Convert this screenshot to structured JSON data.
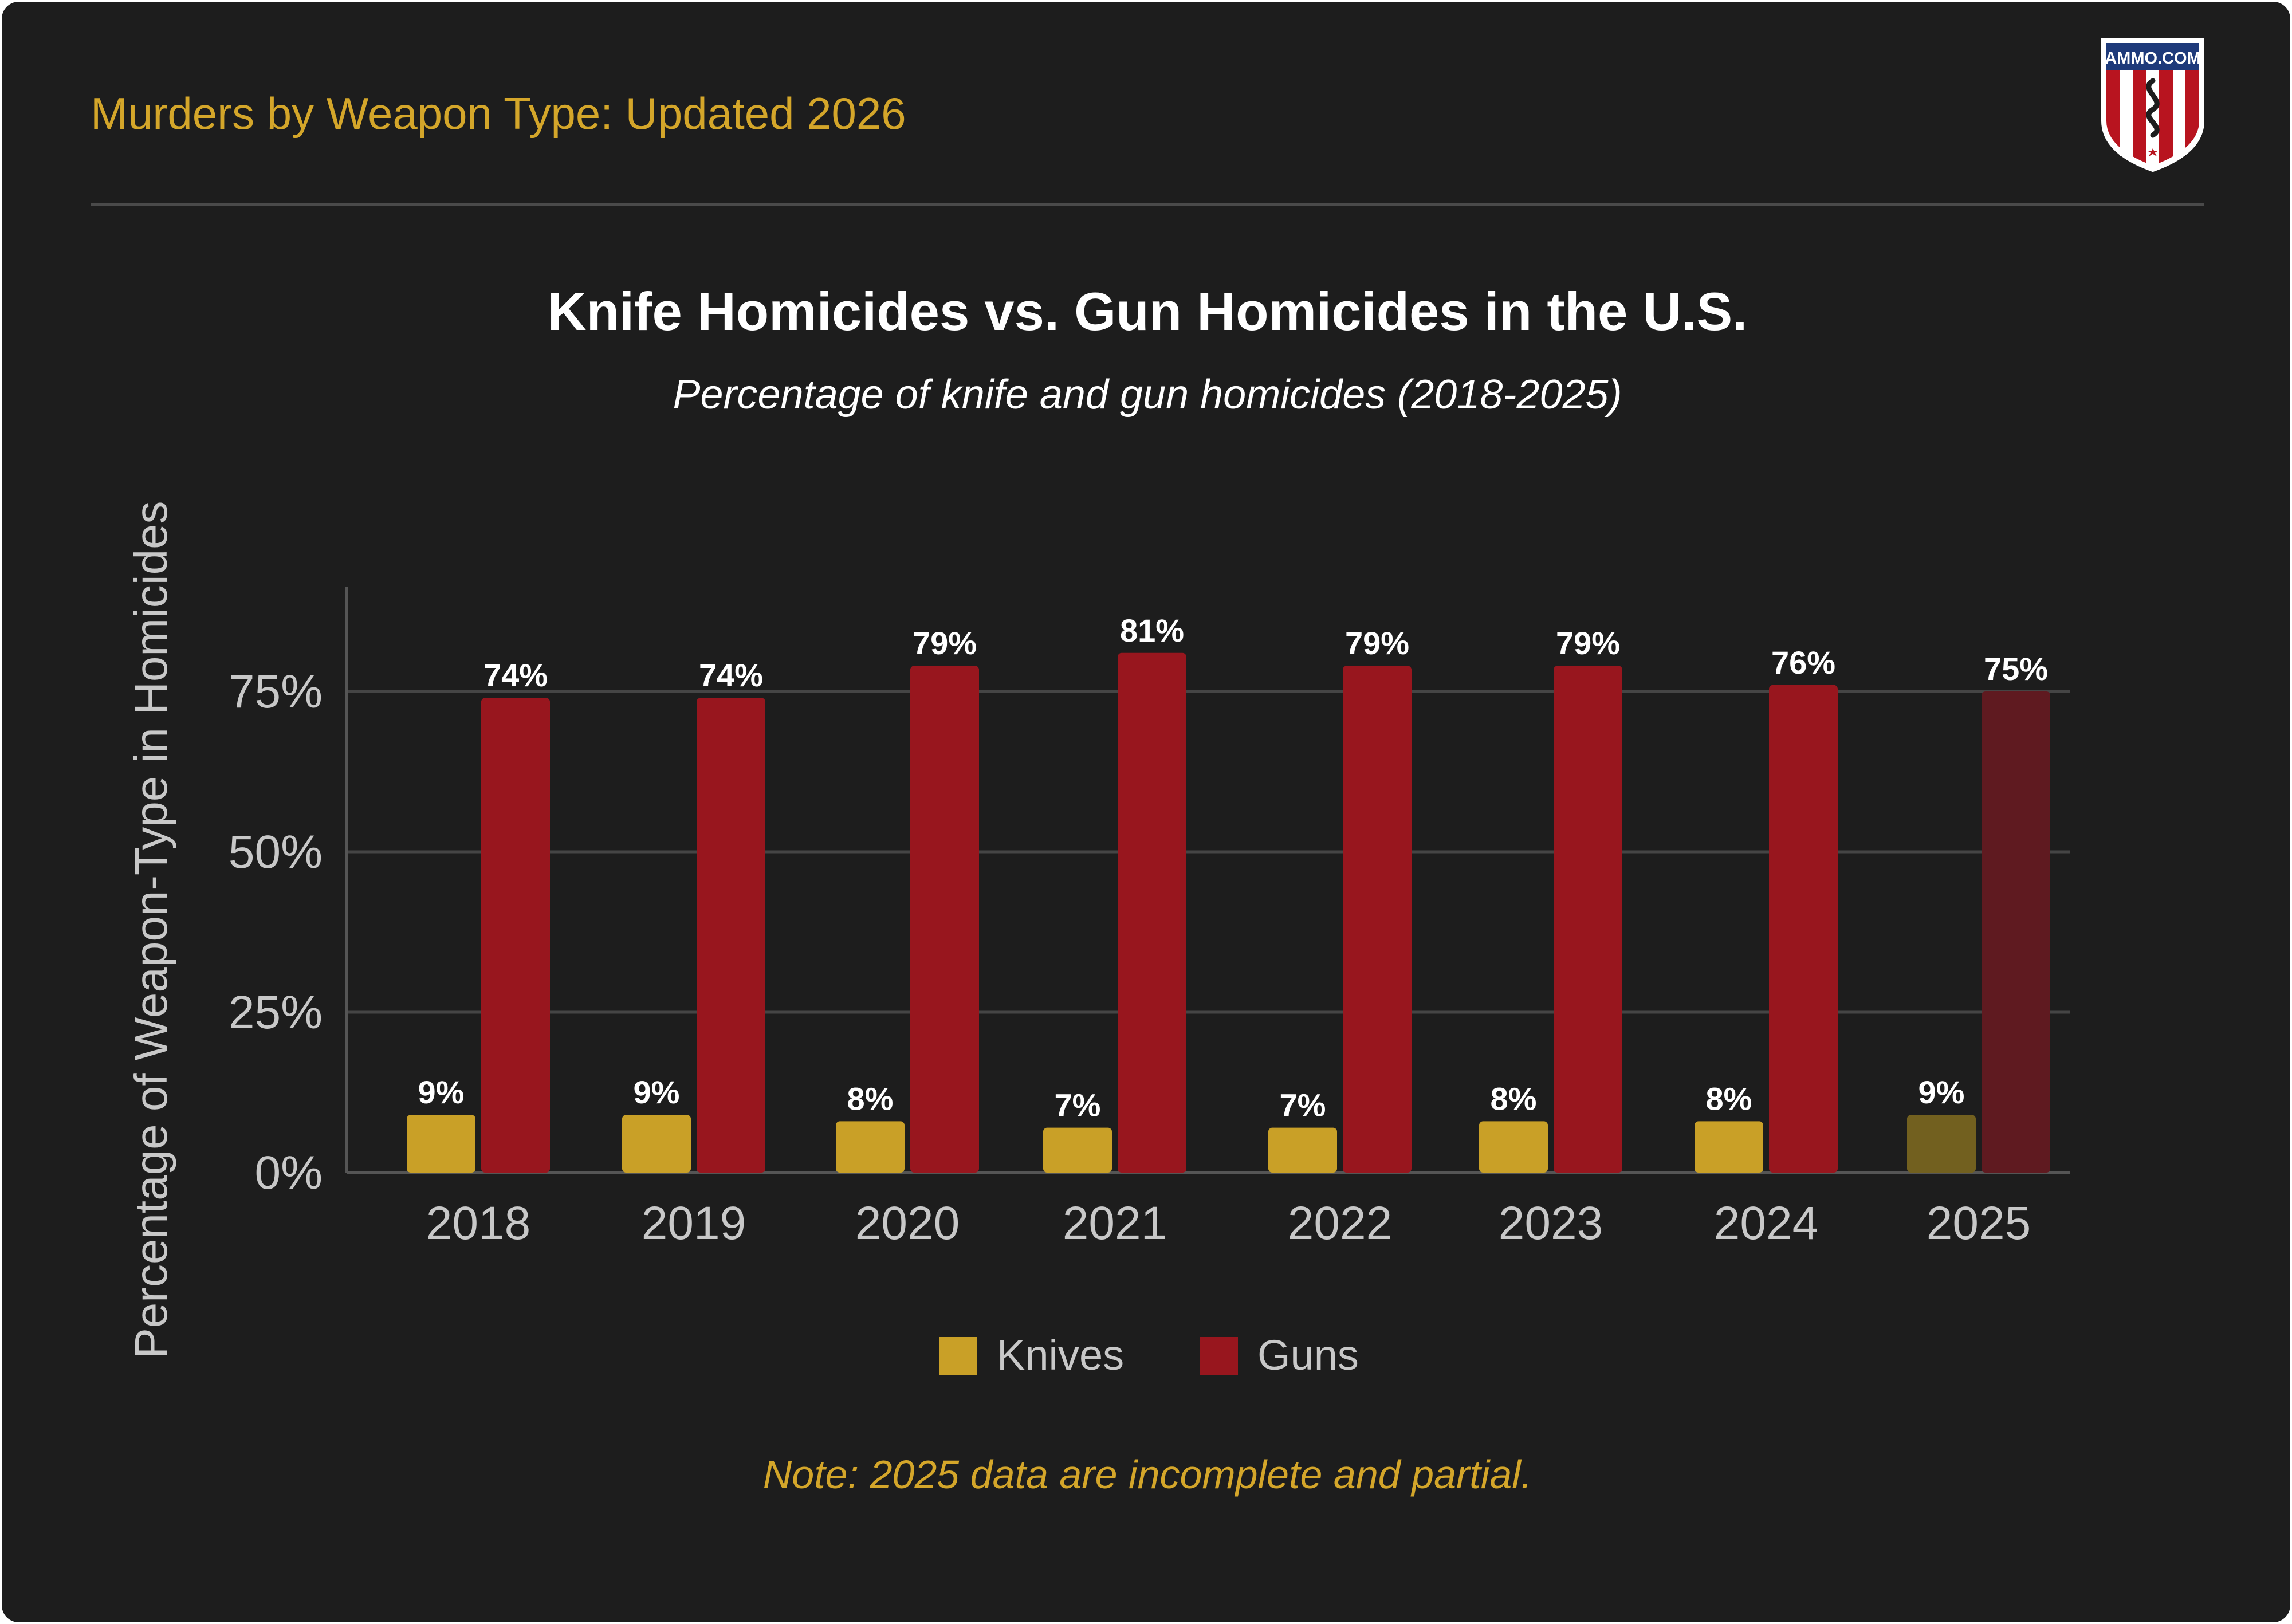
{
  "header": {
    "title": "Murders by Weapon Type: Updated 2026",
    "logo_text": "AMMO.COM"
  },
  "colors": {
    "background": "#1d1d1d",
    "accent_gold": "#d4a62a",
    "knives": "#c9a027",
    "guns": "#98161e",
    "knives_partial": "#72601f",
    "guns_partial": "#5f1a20",
    "grid": "#454545"
  },
  "chart_data": {
    "type": "bar",
    "title": "Knife Homicides vs. Gun Homicides in the U.S.",
    "subtitle": "Percentage of knife and gun homicides (2018-2025)",
    "xlabel": "",
    "ylabel": "Percentage of Weapon-Type in Homicides",
    "categories": [
      "2018",
      "2019",
      "2020",
      "2021",
      "2022",
      "2023",
      "2024",
      "2025"
    ],
    "series": [
      {
        "name": "Knives",
        "values": [
          9,
          9,
          8,
          7,
          7,
          8,
          8,
          9
        ],
        "labels": [
          "9%",
          "9%",
          "8%",
          "7%",
          "7%",
          "8%",
          "8%",
          "9%"
        ]
      },
      {
        "name": "Guns",
        "values": [
          74,
          74,
          79,
          81,
          79,
          79,
          76,
          75
        ],
        "labels": [
          "74%",
          "74%",
          "79%",
          "81%",
          "79%",
          "79%",
          "76%",
          "75%"
        ]
      }
    ],
    "partial_categories": [
      "2025"
    ],
    "ylim": [
      0,
      90
    ],
    "yticks": [
      0,
      25,
      50,
      75
    ],
    "ytick_labels": [
      "0%",
      "25%",
      "50%",
      "75%"
    ],
    "grid": true,
    "legend_position": "bottom-center",
    "note": "Note: 2025 data are incomplete and partial."
  }
}
